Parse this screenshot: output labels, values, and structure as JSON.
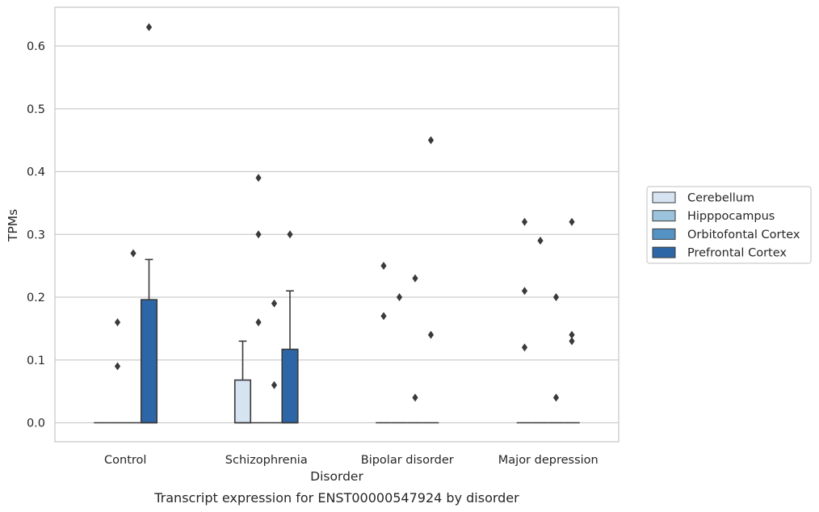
{
  "chart_data": {
    "type": "box",
    "caption": "Transcript expression for ENST00000547924 by disorder",
    "xlabel": "Disorder",
    "ylabel": "TPMs",
    "ylim": [
      -0.03,
      0.66
    ],
    "yticks": [
      0.0,
      0.1,
      0.2,
      0.3,
      0.4,
      0.5,
      0.6
    ],
    "ytick_labels": [
      "0.0",
      "0.1",
      "0.2",
      "0.3",
      "0.4",
      "0.5",
      "0.6"
    ],
    "grid": "horizontal",
    "legend_position": "right",
    "categories": [
      "Control",
      "Schizophrenia",
      "Bipolar disorder",
      "Major depression"
    ],
    "series": [
      {
        "name": "Cerebellum",
        "color": "#d6e4f2",
        "boxes": [
          {
            "q1": 0,
            "median": 0,
            "q3": 0,
            "whisker_low": 0,
            "whisker_high": 0,
            "outliers": []
          },
          {
            "q1": 0,
            "median": 0,
            "q3": 0.068,
            "whisker_low": 0,
            "whisker_high": 0.13,
            "outliers": []
          },
          {
            "q1": 0,
            "median": 0,
            "q3": 0,
            "whisker_low": 0,
            "whisker_high": 0,
            "outliers": [
              0.25,
              0.17
            ]
          },
          {
            "q1": 0,
            "median": 0,
            "q3": 0,
            "whisker_low": 0,
            "whisker_high": 0,
            "outliers": [
              0.32,
              0.21,
              0.12
            ]
          }
        ]
      },
      {
        "name": "Hipppocampus",
        "color": "#9cc3de",
        "boxes": [
          {
            "q1": 0,
            "median": 0,
            "q3": 0,
            "whisker_low": 0,
            "whisker_high": 0,
            "outliers": [
              0.16,
              0.09
            ]
          },
          {
            "q1": 0,
            "median": 0,
            "q3": 0,
            "whisker_low": 0,
            "whisker_high": 0,
            "outliers": [
              0.39,
              0.3,
              0.16
            ]
          },
          {
            "q1": 0,
            "median": 0,
            "q3": 0,
            "whisker_low": 0,
            "whisker_high": 0,
            "outliers": [
              0.2
            ]
          },
          {
            "q1": 0,
            "median": 0,
            "q3": 0,
            "whisker_low": 0,
            "whisker_high": 0,
            "outliers": [
              0.29
            ]
          }
        ]
      },
      {
        "name": "Orbitofontal Cortex",
        "color": "#5592c4",
        "boxes": [
          {
            "q1": 0,
            "median": 0,
            "q3": 0,
            "whisker_low": 0,
            "whisker_high": 0,
            "outliers": [
              0.27
            ]
          },
          {
            "q1": 0,
            "median": 0,
            "q3": 0,
            "whisker_low": 0,
            "whisker_high": 0,
            "outliers": [
              0.19,
              0.06
            ]
          },
          {
            "q1": 0,
            "median": 0,
            "q3": 0,
            "whisker_low": 0,
            "whisker_high": 0,
            "outliers": [
              0.23,
              0.04
            ]
          },
          {
            "q1": 0,
            "median": 0,
            "q3": 0,
            "whisker_low": 0,
            "whisker_high": 0,
            "outliers": [
              0.2,
              0.04
            ]
          }
        ]
      },
      {
        "name": "Prefrontal Cortex",
        "color": "#2d66a6",
        "boxes": [
          {
            "q1": 0,
            "median": 0,
            "q3": 0.196,
            "whisker_low": 0,
            "whisker_high": 0.26,
            "outliers": [
              0.63
            ]
          },
          {
            "q1": 0,
            "median": 0,
            "q3": 0.117,
            "whisker_low": 0,
            "whisker_high": 0.21,
            "outliers": [
              0.3
            ]
          },
          {
            "q1": 0,
            "median": 0,
            "q3": 0,
            "whisker_low": 0,
            "whisker_high": 0,
            "outliers": [
              0.45,
              0.14
            ]
          },
          {
            "q1": 0,
            "median": 0,
            "q3": 0,
            "whisker_low": 0,
            "whisker_high": 0,
            "outliers": [
              0.32,
              0.14,
              0.13
            ]
          }
        ]
      }
    ]
  }
}
